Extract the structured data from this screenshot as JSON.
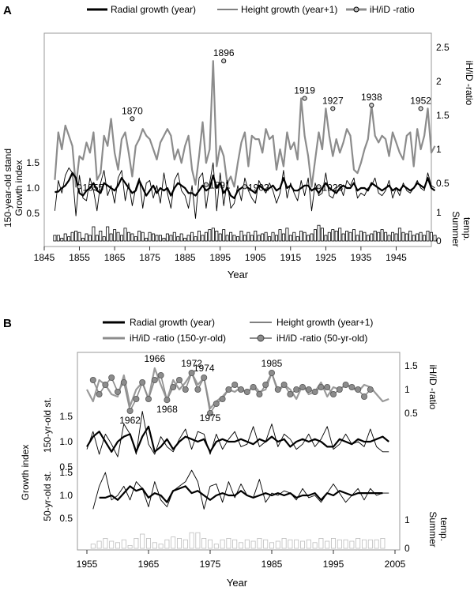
{
  "chart_data": [
    {
      "panel": "A",
      "type": "line",
      "legend": [
        {
          "name": "Radial growth (year)",
          "style": "thick-black"
        },
        {
          "name": "Height growth (year+1)",
          "style": "thin-black"
        },
        {
          "name": "iH/iD -ratio",
          "style": "gray-with-marker"
        }
      ],
      "xlabel": "Year",
      "xticks": [
        "1845",
        "1855",
        "1865",
        "1875",
        "1885",
        "1895",
        "1905",
        "1915",
        "1925",
        "1935",
        "1945"
      ],
      "xlim": [
        1845,
        1955
      ],
      "ylabel_left": "150-year-old stand\nGrowth index",
      "ylabel_right_top": "iH/iD -ratio",
      "ylabel_right_bottom": "Summer\ntemp.",
      "left_yticks": [
        "0.5",
        "1.0",
        "1.5"
      ],
      "right_yticks_ratio": [
        "0.5",
        "1",
        "1.5",
        "2",
        "2.5"
      ],
      "right_yticks_temp": [
        "0",
        "1"
      ],
      "annotations": [
        {
          "label": "1855",
          "year": 1855,
          "ratio": 0.45
        },
        {
          "label": "1870",
          "year": 1870,
          "ratio": 1.45
        },
        {
          "label": "1891",
          "year": 1891,
          "ratio": 0.48
        },
        {
          "label": "1896",
          "year": 1896,
          "ratio": 2.3
        },
        {
          "label": "1902",
          "year": 1902,
          "ratio": 0.45
        },
        {
          "label": "1919",
          "year": 1919,
          "ratio": 1.75
        },
        {
          "label": "1923",
          "year": 1923,
          "ratio": 0.45
        },
        {
          "label": "1927",
          "year": 1927,
          "ratio": 1.6
        },
        {
          "label": "1938",
          "year": 1938,
          "ratio": 1.65
        },
        {
          "label": "1952",
          "year": 1952,
          "ratio": 1.6
        }
      ],
      "series": [
        {
          "name": "iH/iD -ratio",
          "x_start": 1848,
          "values": [
            0.55,
            1.25,
            1.0,
            1.35,
            1.2,
            1.05,
            0.45,
            0.9,
            0.85,
            1.1,
            0.95,
            1.25,
            0.55,
            0.65,
            1.2,
            1.05,
            1.45,
            0.95,
            0.7,
            1.15,
            1.25,
            0.95,
            0.6,
            1.05,
            1.15,
            1.3,
            1.2,
            1.15,
            1.0,
            0.85,
            1.1,
            1.2,
            1.3,
            1.2,
            0.85,
            1.0,
            0.8,
            1.05,
            1.2,
            0.7,
            0.48,
            0.9,
            1.4,
            0.8,
            1.0,
            2.3,
            0.75,
            1.05,
            0.9,
            0.5,
            0.6,
            0.45,
            0.8,
            1.1,
            1.25,
            0.75,
            1.2,
            1.15,
            1.15,
            0.95,
            1.3,
            1.15,
            1.2,
            0.7,
            1.0,
            0.75,
            1.25,
            1.0,
            1.1,
            0.85,
            1.75,
            1.2,
            0.9,
            0.45,
            0.85,
            1.25,
            1.0,
            1.6,
            1.2,
            0.9,
            1.15,
            0.95,
            1.1,
            1.3,
            1.2,
            0.7,
            0.65,
            0.8,
            1.0,
            1.15,
            1.65,
            1.2,
            1.1,
            1.2,
            1.15,
            0.9,
            1.25,
            1.1,
            0.95,
            0.85,
            1.2,
            1.25,
            0.75,
            1.3,
            1.0,
            1.2,
            1.6,
            0.95,
            1.05
          ]
        },
        {
          "name": "Radial growth (year)",
          "x_start": 1848,
          "values": [
            0.92,
            0.93,
            1.0,
            1.05,
            1.15,
            1.3,
            1.2,
            0.9,
            0.85,
            0.95,
            1.0,
            1.1,
            0.95,
            0.9,
            1.1,
            1.05,
            1.0,
            0.95,
            1.05,
            1.2,
            1.1,
            1.0,
            0.9,
            0.95,
            1.15,
            1.0,
            0.85,
            0.95,
            1.05,
            0.9,
            1.0,
            0.95,
            1.0,
            0.85,
            1.0,
            1.1,
            1.05,
            1.0,
            0.9,
            0.9,
            0.85,
            0.95,
            1.05,
            0.95,
            1.0,
            1.25,
            1.0,
            1.1,
            0.9,
            1.0,
            0.85,
            0.8,
            0.95,
            1.0,
            1.05,
            1.0,
            0.95,
            0.9,
            1.05,
            1.0,
            0.95,
            1.0,
            1.05,
            0.95,
            1.0,
            1.2,
            1.0,
            1.05,
            0.95,
            0.95,
            1.0,
            1.05,
            1.05,
            0.95,
            1.0,
            0.9,
            1.0,
            1.1,
            1.0,
            0.95,
            0.9,
            1.0,
            1.05,
            1.0,
            1.0,
            1.1,
            0.95,
            1.0,
            1.0,
            0.95,
            1.1,
            1.05,
            1.0,
            0.95,
            1.0,
            1.05,
            0.95,
            1.0,
            0.95,
            1.05,
            1.0,
            0.95,
            1.0,
            1.1,
            1.05,
            1.0,
            1.2,
            1.0,
            0.95
          ]
        },
        {
          "name": "Height growth (year+1)",
          "x_start": 1848,
          "values": [
            0.55,
            1.15,
            0.9,
            1.25,
            1.4,
            1.3,
            0.45,
            1.25,
            0.8,
            0.75,
            1.2,
            0.95,
            0.55,
            1.1,
            1.35,
            0.85,
            1.05,
            0.7,
            1.2,
            1.35,
            0.75,
            1.1,
            0.65,
            1.0,
            1.2,
            0.6,
            1.1,
            1.15,
            0.8,
            1.05,
            0.7,
            1.3,
            0.9,
            0.6,
            1.15,
            1.3,
            0.95,
            0.85,
            0.6,
            1.05,
            0.4,
            1.2,
            1.3,
            0.6,
            1.1,
            1.5,
            0.55,
            1.3,
            0.65,
            1.15,
            0.6,
            0.7,
            1.05,
            0.75,
            1.2,
            0.95,
            0.8,
            0.7,
            1.15,
            1.0,
            0.9,
            1.1,
            0.95,
            0.7,
            0.9,
            1.35,
            0.8,
            1.1,
            0.9,
            0.75,
            1.15,
            0.85,
            1.2,
            0.55,
            1.1,
            0.85,
            0.9,
            1.3,
            0.85,
            0.8,
            1.0,
            1.05,
            0.85,
            1.15,
            1.05,
            1.2,
            0.8,
            0.9,
            0.85,
            1.0,
            1.05,
            1.2,
            0.9,
            0.85,
            0.95,
            1.15,
            0.8,
            1.0,
            0.85,
            1.1,
            0.95,
            0.9,
            1.0,
            1.15,
            1.0,
            0.95,
            1.3,
            1.05,
            1.0
          ]
        },
        {
          "name": "Summer temp.",
          "x_start": 1848,
          "values": [
            0.2,
            0.2,
            0.1,
            0.25,
            0.15,
            0.3,
            0.35,
            0.3,
            0.1,
            0.25,
            0.2,
            0.5,
            0.2,
            0.35,
            0.15,
            0.5,
            0.25,
            0.4,
            0.3,
            0.2,
            0.45,
            0.3,
            0.25,
            0.15,
            0.35,
            0.3,
            0.1,
            0.3,
            0.25,
            0.2,
            0.2,
            0.1,
            0.25,
            0.2,
            0.3,
            0.15,
            0.25,
            0.1,
            0.2,
            0.3,
            0.15,
            0.35,
            0.2,
            0.3,
            0.4,
            0.45,
            0.35,
            0.25,
            0.4,
            0.2,
            0.3,
            0.2,
            0.15,
            0.35,
            0.2,
            0.3,
            0.2,
            0.35,
            0.2,
            0.25,
            0.3,
            0.15,
            0.3,
            0.2,
            0.4,
            0.25,
            0.45,
            0.2,
            0.3,
            0.15,
            0.35,
            0.3,
            0.2,
            0.25,
            0.4,
            0.55,
            0.45,
            0.2,
            0.3,
            0.4,
            0.35,
            0.45,
            0.25,
            0.35,
            0.3,
            0.4,
            0.2,
            0.35,
            0.3,
            0.2,
            0.25,
            0.35,
            0.3,
            0.4,
            0.3,
            0.2,
            0.3,
            0.25,
            0.45,
            0.3,
            0.25,
            0.35,
            0.2,
            0.25,
            0.3,
            0.2,
            0.35,
            0.3,
            0.2
          ]
        }
      ]
    },
    {
      "panel": "B",
      "type": "line",
      "legend": [
        {
          "name": "Radial growth (year)",
          "style": "thick-black"
        },
        {
          "name": "Height growth (year+1)",
          "style": "thin-black"
        },
        {
          "name": "iH/iD -ratio (150-yr-old)",
          "style": "gray"
        },
        {
          "name": "iH/iD -ratio (50-yr-old)",
          "style": "gray-with-marker"
        }
      ],
      "xlabel": "Year",
      "xticks": [
        "1955",
        "1965",
        "1975",
        "1985",
        "1995",
        "2005"
      ],
      "xlim": [
        1955,
        2005
      ],
      "ylabel_left": "Growth index",
      "ylabel_left_top": "150-yr-old st.",
      "ylabel_left_bottom": "50-yr-old st.",
      "ylabel_right_top": "iH/iD -ratio",
      "ylabel_right_bottom": "Summer\ntemp.",
      "left_yticks_top": [
        "0.5",
        "1.0",
        "1.5"
      ],
      "left_yticks_bottom": [
        "0.5",
        "1.0",
        "1.5"
      ],
      "right_yticks_ratio": [
        "0.5",
        "1",
        "1.5"
      ],
      "right_yticks_temp": [
        "0",
        "1"
      ],
      "annotations": [
        {
          "label": "1962",
          "year": 1962,
          "ratio": 0.55
        },
        {
          "label": "1966",
          "year": 1966,
          "ratio": 1.45
        },
        {
          "label": "1968",
          "year": 1968,
          "ratio": 0.78
        },
        {
          "label": "1972",
          "year": 1972,
          "ratio": 1.35
        },
        {
          "label": "1974",
          "year": 1974,
          "ratio": 1.25
        },
        {
          "label": "1975",
          "year": 1975,
          "ratio": 0.6
        },
        {
          "label": "1985",
          "year": 1985,
          "ratio": 1.35
        }
      ],
      "series": [
        {
          "name": "iH/iD -ratio (150-yr-old)",
          "x_start": 1955,
          "values": [
            1.0,
            0.75,
            1.2,
            1.1,
            0.9,
            0.85,
            1.3,
            0.65,
            1.0,
            1.15,
            0.8,
            1.45,
            1.1,
            0.78,
            1.2,
            1.0,
            1.15,
            1.35,
            1.1,
            1.25,
            0.6,
            0.75,
            0.85,
            1.0,
            0.95,
            1.05,
            0.9,
            1.1,
            0.95,
            1.0,
            1.35,
            0.95,
            1.1,
            1.0,
            0.8,
            1.1,
            0.9,
            0.95,
            1.15,
            0.85,
            1.05,
            1.0,
            1.1,
            1.05,
            0.95,
            1.1,
            1.05,
            0.9,
            0.75,
            0.8
          ]
        },
        {
          "name": "iH/iD -ratio (50-yr-old)",
          "x_start": 1956,
          "values": [
            1.2,
            0.9,
            1.1,
            1.25,
            0.95,
            1.15,
            0.55,
            0.8,
            1.15,
            0.8,
            1.2,
            1.3,
            0.78,
            1.05,
            1.2,
            1.0,
            1.35,
            1.0,
            1.25,
            0.5,
            0.7,
            0.8,
            1.0,
            1.1,
            1.0,
            0.95,
            1.05,
            0.9,
            1.1,
            1.35,
            1.0,
            1.1,
            0.9,
            1.0,
            1.05,
            1.0,
            0.95,
            1.05,
            1.05,
            0.9,
            1.0,
            1.1,
            1.05,
            1.0,
            0.85,
            1.0
          ]
        },
        {
          "name": "Radial growth (year) 150-yr-old",
          "x_start": 1955,
          "values": [
            0.9,
            1.1,
            1.2,
            1.0,
            0.8,
            1.0,
            1.1,
            1.15,
            0.8,
            1.1,
            1.3,
            0.8,
            0.9,
            1.05,
            0.85,
            1.0,
            1.1,
            1.05,
            1.0,
            1.05,
            0.8,
            1.0,
            1.05,
            1.0,
            1.0,
            1.05,
            1.0,
            0.95,
            1.05,
            1.0,
            1.1,
            1.0,
            1.05,
            0.9,
            1.0,
            1.05,
            1.0,
            1.05,
            1.0,
            0.9,
            0.9,
            1.05,
            1.0,
            0.95,
            1.05,
            1.0,
            1.0,
            1.05,
            1.1,
            1.0
          ]
        },
        {
          "name": "Height growth (year+1) 150-yr-old",
          "x_start": 1955,
          "values": [
            0.85,
            1.2,
            0.75,
            1.15,
            0.95,
            0.7,
            1.35,
            1.15,
            0.75,
            1.6,
            0.95,
            0.75,
            1.1,
            0.9,
            0.8,
            1.05,
            1.25,
            0.85,
            1.2,
            1.15,
            0.75,
            1.15,
            0.85,
            1.05,
            1.2,
            0.9,
            0.95,
            1.3,
            0.9,
            1.0,
            1.35,
            0.9,
            1.15,
            1.05,
            0.85,
            0.95,
            1.15,
            0.9,
            1.05,
            1.3,
            0.85,
            0.95,
            1.15,
            0.95,
            1.0,
            0.9,
            1.25,
            0.9,
            0.8,
            0.8
          ]
        },
        {
          "name": "Radial growth (year) 50-yr-old",
          "x_start": 1957,
          "values": [
            0.95,
            0.95,
            1.0,
            0.9,
            1.05,
            1.2,
            1.1,
            1.15,
            0.95,
            1.05,
            1.0,
            0.85,
            1.1,
            1.15,
            1.2,
            1.05,
            1.1,
            1.0,
            0.9,
            1.0,
            1.05,
            1.0,
            1.0,
            1.1,
            1.0,
            0.95,
            1.0,
            1.05,
            1.0,
            1.05,
            1.0,
            1.05,
            0.95,
            1.0,
            1.0,
            1.05,
            0.9,
            1.05,
            1.0,
            1.1,
            1.05,
            1.0,
            1.05,
            1.05,
            1.05,
            1.05,
            1.05
          ]
        },
        {
          "name": "Height growth (year+1) 50-yr-old",
          "x_start": 1956,
          "values": [
            0.7,
            1.2,
            1.5,
            0.9,
            1.0,
            1.2,
            0.9,
            1.3,
            1.15,
            0.75,
            1.3,
            0.9,
            0.75,
            1.1,
            1.2,
            1.3,
            1.55,
            1.3,
            0.7,
            1.2,
            1.25,
            0.85,
            1.3,
            0.95,
            1.25,
            1.0,
            0.95,
            1.35,
            0.85,
            1.05,
            1.0,
            1.1,
            1.05,
            0.9,
            1.15,
            0.95,
            1.0,
            0.85,
            1.05,
            1.25,
            1.05,
            0.85,
            1.0,
            1.15,
            0.9,
            1.15,
            1.0,
            1.05,
            1.05
          ]
        },
        {
          "name": "Summer temp.",
          "x_start": 1956,
          "values": [
            0.15,
            0.25,
            0.35,
            0.25,
            0.2,
            0.3,
            0.1,
            0.35,
            0.5,
            0.35,
            0.2,
            0.15,
            0.3,
            0.4,
            0.35,
            0.3,
            0.55,
            0.55,
            0.35,
            0.3,
            0.15,
            0.3,
            0.35,
            0.3,
            0.2,
            0.3,
            0.25,
            0.35,
            0.3,
            0.2,
            0.25,
            0.35,
            0.3,
            0.3,
            0.25,
            0.3,
            0.2,
            0.35,
            0.25,
            0.35,
            0.3,
            0.3,
            0.25,
            0.35,
            0.3,
            0.3,
            0.3,
            0.35
          ]
        }
      ]
    }
  ]
}
